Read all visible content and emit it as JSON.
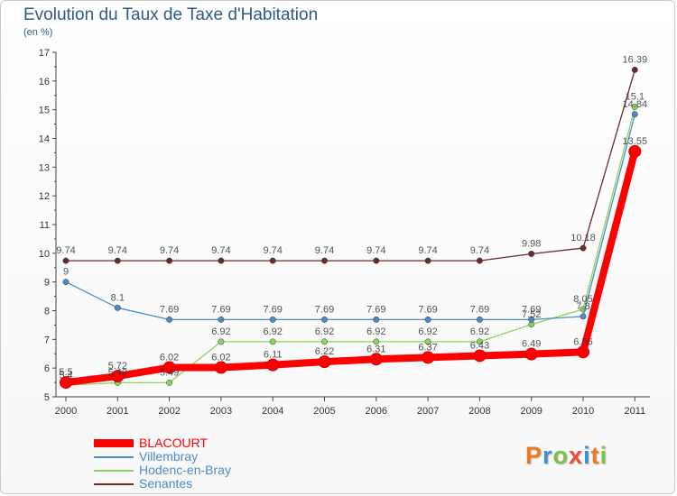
{
  "title": "Evolution du Taux de Taxe d'Habitation",
  "subtitle": "(en %)",
  "logo": {
    "text": "Proxiti",
    "colors": [
      "#e87b1c",
      "#3a8fd6",
      "#7cc242",
      "#e84c3d",
      "#3a8fd6",
      "#e87b1c",
      "#7cc242"
    ]
  },
  "chart_data": {
    "type": "line",
    "title": "Evolution du Taux de Taxe d'Habitation",
    "ylabel": "(en %)",
    "xlabel": "",
    "x": [
      "2000",
      "2001",
      "2002",
      "2003",
      "2004",
      "2005",
      "2006",
      "2007",
      "2008",
      "2009",
      "2010",
      "2011"
    ],
    "ylim": [
      5,
      17
    ],
    "yticks": [
      "5",
      "6",
      "7",
      "8",
      "9",
      "10",
      "11",
      "12",
      "13",
      "14",
      "15",
      "16",
      "17"
    ],
    "grid": false,
    "legend_position": "bottom-left",
    "series": [
      {
        "name": "BLACOURT",
        "color": "#ff0000",
        "values": [
          5.5,
          5.72,
          6.02,
          6.02,
          6.11,
          6.22,
          6.31,
          6.37,
          6.43,
          6.49,
          6.56,
          13.55
        ],
        "labels": [
          "5.5",
          "5.72",
          "6.02",
          "6.02",
          "6.11",
          "6.22",
          "6.31",
          "6.37",
          "6.43",
          "6.49",
          "6.56",
          "13.55"
        ]
      },
      {
        "name": "Villembray",
        "color": "#4a8cc8",
        "values": [
          9,
          8.1,
          7.69,
          7.69,
          7.69,
          7.69,
          7.69,
          7.69,
          7.69,
          7.69,
          7.8,
          14.84
        ],
        "labels": [
          "9",
          "8.1",
          "7.69",
          "7.69",
          "7.69",
          "7.69",
          "7.69",
          "7.69",
          "7.69",
          "7.69",
          "7.8",
          "14.84"
        ]
      },
      {
        "name": "Hodenc-en-Bray",
        "color": "#8dd35f",
        "values": [
          5.4,
          5.49,
          5.49,
          6.92,
          6.92,
          6.92,
          6.92,
          6.92,
          6.92,
          7.52,
          8.05,
          15.1
        ],
        "labels": [
          "5.4",
          "5.49",
          "5.49",
          "6.92",
          "6.92",
          "6.92",
          "6.92",
          "6.92",
          "6.92",
          "7.52",
          "8.05",
          "15.1"
        ]
      },
      {
        "name": "Senantes",
        "color": "#6b2a2a",
        "values": [
          9.74,
          9.74,
          9.74,
          9.74,
          9.74,
          9.74,
          9.74,
          9.74,
          9.74,
          9.98,
          10.18,
          16.39
        ],
        "labels": [
          "9.74",
          "9.74",
          "9.74",
          "9.74",
          "9.74",
          "9.74",
          "9.74",
          "9.74",
          "9.74",
          "9.98",
          "10.18",
          "16.39"
        ]
      }
    ],
    "legend": [
      "BLACOURT",
      "Villembray",
      "Hodenc-en-Bray",
      "Senantes"
    ]
  }
}
